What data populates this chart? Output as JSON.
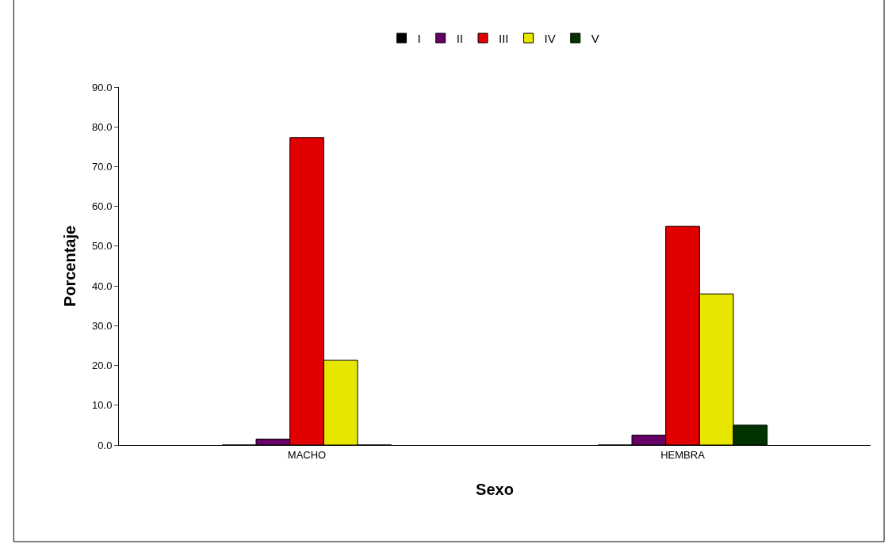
{
  "chart_data": {
    "type": "bar",
    "xlabel": "Sexo",
    "ylabel": "Porcentaje",
    "categories": [
      "MACHO",
      "HEMBRA"
    ],
    "series": [
      {
        "name": "I",
        "color": "#000000",
        "values": [
          0,
          0
        ]
      },
      {
        "name": "II",
        "color": "#660066",
        "values": [
          1.5,
          2.5
        ]
      },
      {
        "name": "III",
        "color": "#e00000",
        "values": [
          77.3,
          55.0
        ]
      },
      {
        "name": "IV",
        "color": "#e6e600",
        "values": [
          21.3,
          38.0
        ]
      },
      {
        "name": "V",
        "color": "#003300",
        "values": [
          0,
          5.0
        ]
      }
    ],
    "ylim": [
      0,
      90
    ],
    "yticks": [
      {
        "value": 0,
        "label": "0.0"
      },
      {
        "value": 10,
        "label": "10.0"
      },
      {
        "value": 20,
        "label": "20.0"
      },
      {
        "value": 30,
        "label": "30.0"
      },
      {
        "value": 40,
        "label": "40.0"
      },
      {
        "value": 50,
        "label": "50.0"
      },
      {
        "value": 60,
        "label": "60.0"
      },
      {
        "value": 70,
        "label": "70.0"
      },
      {
        "value": 80,
        "label": "80.0"
      },
      {
        "value": 90,
        "label": "90.0"
      }
    ],
    "legend": "top"
  }
}
